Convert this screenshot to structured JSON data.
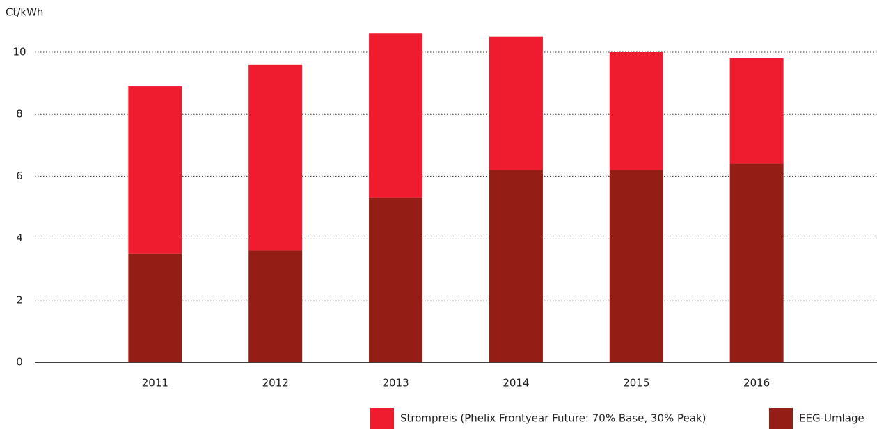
{
  "chart_data": {
    "type": "bar",
    "stacked": true,
    "y_unit": "Ct/kWh",
    "categories": [
      "2011",
      "2012",
      "2013",
      "2014",
      "2015",
      "2016"
    ],
    "series": [
      {
        "name": "Strompreis (Phelix Frontyear Future: 70% Base, 30% Peak)",
        "color": "#ee1c2e",
        "values": [
          5.4,
          6.0,
          5.3,
          4.3,
          3.8,
          3.4
        ]
      },
      {
        "name": "EEG-Umlage",
        "color": "#941e16",
        "values": [
          3.5,
          3.6,
          5.3,
          6.2,
          6.2,
          6.4
        ]
      }
    ],
    "ylim": [
      0,
      11
    ],
    "yticks": [
      0,
      2,
      4,
      6,
      8,
      10
    ],
    "grid": true
  }
}
